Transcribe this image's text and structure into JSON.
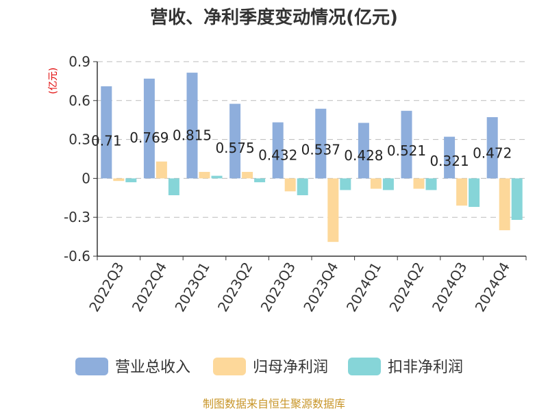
{
  "chart_data": {
    "type": "bar",
    "title": "营收、净利季度变动情况(亿元)",
    "unit_label": "(亿元)",
    "categories": [
      "2022Q3",
      "2022Q4",
      "2023Q1",
      "2023Q2",
      "2023Q3",
      "2023Q4",
      "2024Q1",
      "2024Q2",
      "2024Q3",
      "2024Q4"
    ],
    "series": [
      {
        "name": "营业总收入",
        "color": "#8eaedc",
        "values": [
          0.71,
          0.769,
          0.815,
          0.575,
          0.432,
          0.537,
          0.428,
          0.521,
          0.321,
          0.472
        ]
      },
      {
        "name": "归母净利润",
        "color": "#fdd89a",
        "values": [
          -0.02,
          0.13,
          0.05,
          0.05,
          -0.1,
          -0.49,
          -0.08,
          -0.08,
          -0.21,
          -0.4
        ]
      },
      {
        "name": "扣非净利润",
        "color": "#86d5d8",
        "values": [
          -0.03,
          -0.13,
          0.02,
          -0.03,
          -0.13,
          -0.09,
          -0.09,
          -0.09,
          -0.22,
          -0.32
        ]
      }
    ],
    "data_labels": [
      "0.71",
      "0.769",
      "0.815",
      "0.575",
      "0.432",
      "0.537",
      "0.428",
      "0.521",
      "0.321",
      "0.472"
    ],
    "yticks": [
      "0.9",
      "0.6",
      "0.3",
      "0",
      "-0.3",
      "-0.6"
    ],
    "ytick_values": [
      0.9,
      0.6,
      0.3,
      0,
      -0.3,
      -0.6
    ],
    "ylim": [
      -0.6,
      0.9
    ],
    "grid": true,
    "legend_position": "bottom"
  },
  "source": "制图数据来自恒生聚源数据库"
}
